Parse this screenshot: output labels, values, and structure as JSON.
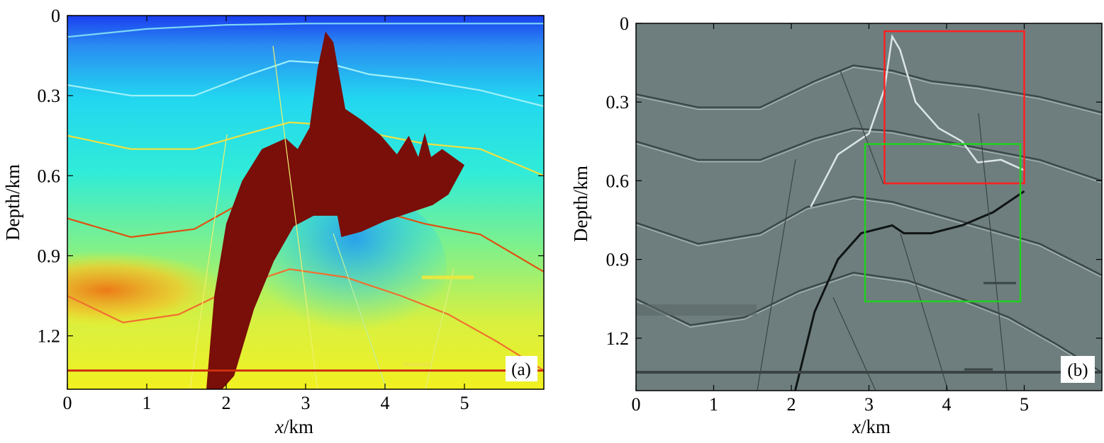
{
  "chart_data": [
    {
      "type": "heatmap",
      "panel_label": "(a)",
      "xlabel_italic": "x",
      "xlabel_rest": "/km",
      "ylabel": "Depth/km",
      "xlim": [
        0,
        6
      ],
      "ylim": [
        0,
        1.4
      ],
      "xticks": [
        0,
        1,
        2,
        3,
        4,
        5
      ],
      "xtick_labels": [
        "0",
        "1",
        "2",
        "3",
        "4",
        "5"
      ],
      "yticks": [
        0,
        0.3,
        0.6,
        0.9,
        1.2
      ],
      "ytick_labels": [
        "0",
        "0.3",
        "0.6",
        "0.9",
        "1.2"
      ],
      "colors": {
        "shallow": "#1a3ef0",
        "mid": "#22e8f0",
        "deep": "#f2f020",
        "salt": "#7a0e08",
        "hot": "#ec7a18"
      },
      "salt_body_outline": [
        [
          1.75,
          1.4
        ],
        [
          1.85,
          1.05
        ],
        [
          2.0,
          0.78
        ],
        [
          2.2,
          0.62
        ],
        [
          2.45,
          0.5
        ],
        [
          2.75,
          0.46
        ],
        [
          2.9,
          0.5
        ],
        [
          3.05,
          0.42
        ],
        [
          3.15,
          0.2
        ],
        [
          3.25,
          0.06
        ],
        [
          3.35,
          0.1
        ],
        [
          3.5,
          0.35
        ],
        [
          3.7,
          0.39
        ],
        [
          3.95,
          0.45
        ],
        [
          4.15,
          0.52
        ],
        [
          4.3,
          0.45
        ],
        [
          4.42,
          0.53
        ],
        [
          4.5,
          0.44
        ],
        [
          4.58,
          0.53
        ],
        [
          4.72,
          0.5
        ],
        [
          5.0,
          0.56
        ],
        [
          4.8,
          0.67
        ],
        [
          4.6,
          0.71
        ],
        [
          4.3,
          0.74
        ],
        [
          4.0,
          0.77
        ],
        [
          3.7,
          0.81
        ],
        [
          3.45,
          0.83
        ],
        [
          3.4,
          0.75
        ],
        [
          3.1,
          0.75
        ],
        [
          2.85,
          0.79
        ],
        [
          2.6,
          0.92
        ],
        [
          2.35,
          1.1
        ],
        [
          2.1,
          1.35
        ],
        [
          1.95,
          1.4
        ]
      ],
      "reflectors": [
        {
          "name": "h1",
          "points": [
            [
              0,
              0.08
            ],
            [
              1.0,
              0.05
            ],
            [
              2.0,
              0.035
            ],
            [
              3.0,
              0.03
            ],
            [
              4.0,
              0.03
            ],
            [
              5.0,
              0.03
            ],
            [
              6.0,
              0.03
            ]
          ]
        },
        {
          "name": "h2",
          "points": [
            [
              0,
              0.26
            ],
            [
              0.8,
              0.3
            ],
            [
              1.6,
              0.3
            ],
            [
              2.3,
              0.22
            ],
            [
              2.8,
              0.17
            ],
            [
              3.3,
              0.18
            ],
            [
              3.8,
              0.22
            ],
            [
              4.4,
              0.24
            ],
            [
              5.2,
              0.28
            ],
            [
              6.0,
              0.34
            ]
          ]
        },
        {
          "name": "h3",
          "points": [
            [
              0,
              0.45
            ],
            [
              0.8,
              0.5
            ],
            [
              1.6,
              0.5
            ],
            [
              2.3,
              0.44
            ],
            [
              2.8,
              0.4
            ],
            [
              3.3,
              0.41
            ],
            [
              3.8,
              0.44
            ],
            [
              4.5,
              0.48
            ],
            [
              5.2,
              0.5
            ],
            [
              6.0,
              0.6
            ]
          ]
        },
        {
          "name": "h4",
          "points": [
            [
              0,
              0.76
            ],
            [
              0.8,
              0.83
            ],
            [
              1.6,
              0.8
            ],
            [
              2.2,
              0.7
            ],
            [
              2.8,
              0.66
            ],
            [
              3.3,
              0.68
            ],
            [
              3.9,
              0.73
            ],
            [
              4.5,
              0.78
            ],
            [
              5.2,
              0.82
            ],
            [
              6.0,
              0.96
            ]
          ]
        },
        {
          "name": "h5",
          "points": [
            [
              0,
              1.05
            ],
            [
              0.7,
              1.15
            ],
            [
              1.4,
              1.12
            ],
            [
              2.1,
              1.02
            ],
            [
              2.8,
              0.95
            ],
            [
              3.5,
              0.98
            ],
            [
              4.2,
              1.05
            ],
            [
              4.8,
              1.12
            ],
            [
              5.4,
              1.22
            ],
            [
              6.0,
              1.33
            ]
          ]
        }
      ],
      "bottom_line_depth": 1.33
    },
    {
      "type": "heatmap",
      "panel_label": "(b)",
      "xlabel_italic": "x",
      "xlabel_rest": "/km",
      "ylabel": "Depth/km",
      "xlim": [
        0,
        6
      ],
      "ylim": [
        0,
        1.4
      ],
      "xticks": [
        0,
        1,
        2,
        3,
        4,
        5
      ],
      "xtick_labels": [
        "0",
        "1",
        "2",
        "3",
        "4",
        "5"
      ],
      "yticks": [
        0,
        0.3,
        0.6,
        0.9,
        1.2
      ],
      "ytick_labels": [
        "0",
        "0.3",
        "0.6",
        "0.9",
        "1.2"
      ],
      "colors": {
        "background": "#6e7e7e",
        "dark": "#2a3232",
        "light": "#d8e0e0",
        "red_box": "#ff2020",
        "green_box": "#20d020"
      },
      "boxes": [
        {
          "name": "red-box",
          "x": [
            3.2,
            5.0
          ],
          "y": [
            0.03,
            0.61
          ]
        },
        {
          "name": "green-box",
          "x": [
            2.95,
            4.95
          ],
          "y": [
            0.46,
            1.06
          ]
        }
      ],
      "salt_top_reflector": [
        [
          2.25,
          0.7
        ],
        [
          2.6,
          0.5
        ],
        [
          3.0,
          0.42
        ],
        [
          3.2,
          0.25
        ],
        [
          3.3,
          0.05
        ],
        [
          3.4,
          0.1
        ],
        [
          3.6,
          0.3
        ],
        [
          3.9,
          0.4
        ],
        [
          4.2,
          0.45
        ],
        [
          4.4,
          0.53
        ],
        [
          4.7,
          0.52
        ],
        [
          5.0,
          0.56
        ]
      ],
      "salt_base_reflector": [
        [
          2.05,
          1.4
        ],
        [
          2.3,
          1.1
        ],
        [
          2.6,
          0.9
        ],
        [
          2.9,
          0.8
        ],
        [
          3.3,
          0.77
        ],
        [
          3.45,
          0.8
        ],
        [
          3.8,
          0.8
        ],
        [
          4.2,
          0.77
        ],
        [
          4.6,
          0.72
        ],
        [
          5.0,
          0.64
        ]
      ],
      "reflectors": [
        {
          "name": "h1",
          "points": [
            [
              0,
              0.27
            ],
            [
              0.8,
              0.32
            ],
            [
              1.6,
              0.32
            ],
            [
              2.3,
              0.22
            ],
            [
              2.8,
              0.16
            ],
            [
              3.3,
              0.18
            ],
            [
              3.8,
              0.22
            ],
            [
              4.4,
              0.24
            ],
            [
              5.2,
              0.28
            ],
            [
              6.0,
              0.34
            ]
          ]
        },
        {
          "name": "h2",
          "points": [
            [
              0,
              0.45
            ],
            [
              0.8,
              0.52
            ],
            [
              1.6,
              0.52
            ],
            [
              2.3,
              0.44
            ],
            [
              2.8,
              0.4
            ],
            [
              3.3,
              0.41
            ],
            [
              3.8,
              0.44
            ],
            [
              4.5,
              0.48
            ],
            [
              5.2,
              0.52
            ],
            [
              6.0,
              0.6
            ]
          ]
        },
        {
          "name": "h3",
          "points": [
            [
              0,
              0.76
            ],
            [
              0.8,
              0.84
            ],
            [
              1.6,
              0.8
            ],
            [
              2.2,
              0.7
            ],
            [
              2.8,
              0.66
            ],
            [
              3.3,
              0.68
            ],
            [
              3.9,
              0.73
            ],
            [
              4.5,
              0.78
            ],
            [
              5.2,
              0.84
            ],
            [
              6.0,
              0.96
            ]
          ]
        },
        {
          "name": "h4",
          "points": [
            [
              0,
              1.05
            ],
            [
              0.7,
              1.15
            ],
            [
              1.4,
              1.12
            ],
            [
              2.1,
              1.02
            ],
            [
              2.8,
              0.95
            ],
            [
              3.5,
              0.98
            ],
            [
              4.2,
              1.05
            ],
            [
              4.8,
              1.12
            ],
            [
              5.4,
              1.22
            ],
            [
              6.0,
              1.33
            ]
          ]
        }
      ],
      "bottom_line_depth": 1.33
    }
  ]
}
